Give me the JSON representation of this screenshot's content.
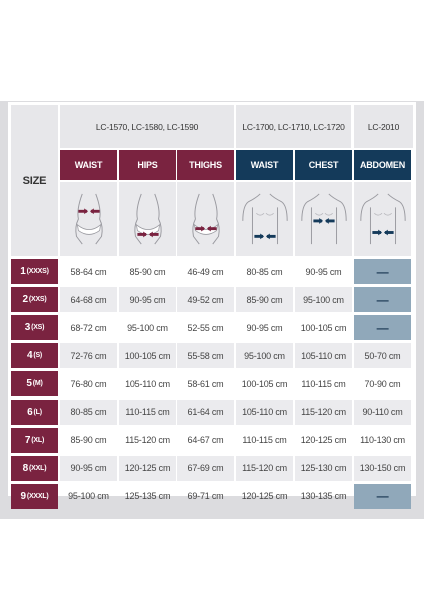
{
  "table": {
    "size_header": "SIZE",
    "groups": [
      "LC-1570, LC-1580, LC-1590",
      "LC-1700, LC-1710, LC-1720",
      "LC-2010"
    ],
    "columns": [
      "WAIST",
      "HIPS",
      "THIGHS",
      "WAIST",
      "CHEST",
      "ABDOMEN"
    ],
    "figures": [
      "female-waist-figure-icon",
      "female-hips-figure-icon",
      "female-thighs-figure-icon",
      "male-waist-figure-icon",
      "male-chest-figure-icon",
      "male-abdomen-figure-icon"
    ],
    "rows": [
      {
        "num": "1",
        "code": "(XXXS)",
        "cells": [
          "58-64 cm",
          "85-90 cm",
          "46-49 cm",
          "80-85 cm",
          "90-95 cm",
          "—"
        ]
      },
      {
        "num": "2",
        "code": "(XXS)",
        "cells": [
          "64-68 cm",
          "90-95 cm",
          "49-52 cm",
          "85-90 cm",
          "95-100 cm",
          "—"
        ]
      },
      {
        "num": "3",
        "code": "(XS)",
        "cells": [
          "68-72 cm",
          "95-100 cm",
          "52-55 cm",
          "90-95 cm",
          "100-105 cm",
          "—"
        ]
      },
      {
        "num": "4",
        "code": "(S)",
        "cells": [
          "72-76 cm",
          "100-105 cm",
          "55-58 cm",
          "95-100 cm",
          "105-110 cm",
          "50-70 cm"
        ]
      },
      {
        "num": "5",
        "code": "(M)",
        "cells": [
          "76-80 cm",
          "105-110 cm",
          "58-61 cm",
          "100-105 cm",
          "110-115 cm",
          "70-90 cm"
        ]
      },
      {
        "num": "6",
        "code": "(L)",
        "cells": [
          "80-85 cm",
          "110-115 cm",
          "61-64 cm",
          "105-110 cm",
          "115-120 cm",
          "90-110 cm"
        ]
      },
      {
        "num": "7",
        "code": "(XL)",
        "cells": [
          "85-90 cm",
          "115-120 cm",
          "64-67 cm",
          "110-115 cm",
          "120-125 cm",
          "110-130 cm"
        ]
      },
      {
        "num": "8",
        "code": "(XXL)",
        "cells": [
          "90-95 cm",
          "120-125 cm",
          "67-69 cm",
          "115-120 cm",
          "125-130 cm",
          "130-150 cm"
        ]
      },
      {
        "num": "9",
        "code": "(XXXL)",
        "cells": [
          "95-100 cm",
          "125-135 cm",
          "69-71 cm",
          "120-125 cm",
          "130-135 cm",
          "—"
        ]
      }
    ]
  },
  "colors": {
    "plum": "#7a2340",
    "navy": "#143a5a",
    "dash_cell": "#90a8ba",
    "panel": "#dcdcdf"
  }
}
